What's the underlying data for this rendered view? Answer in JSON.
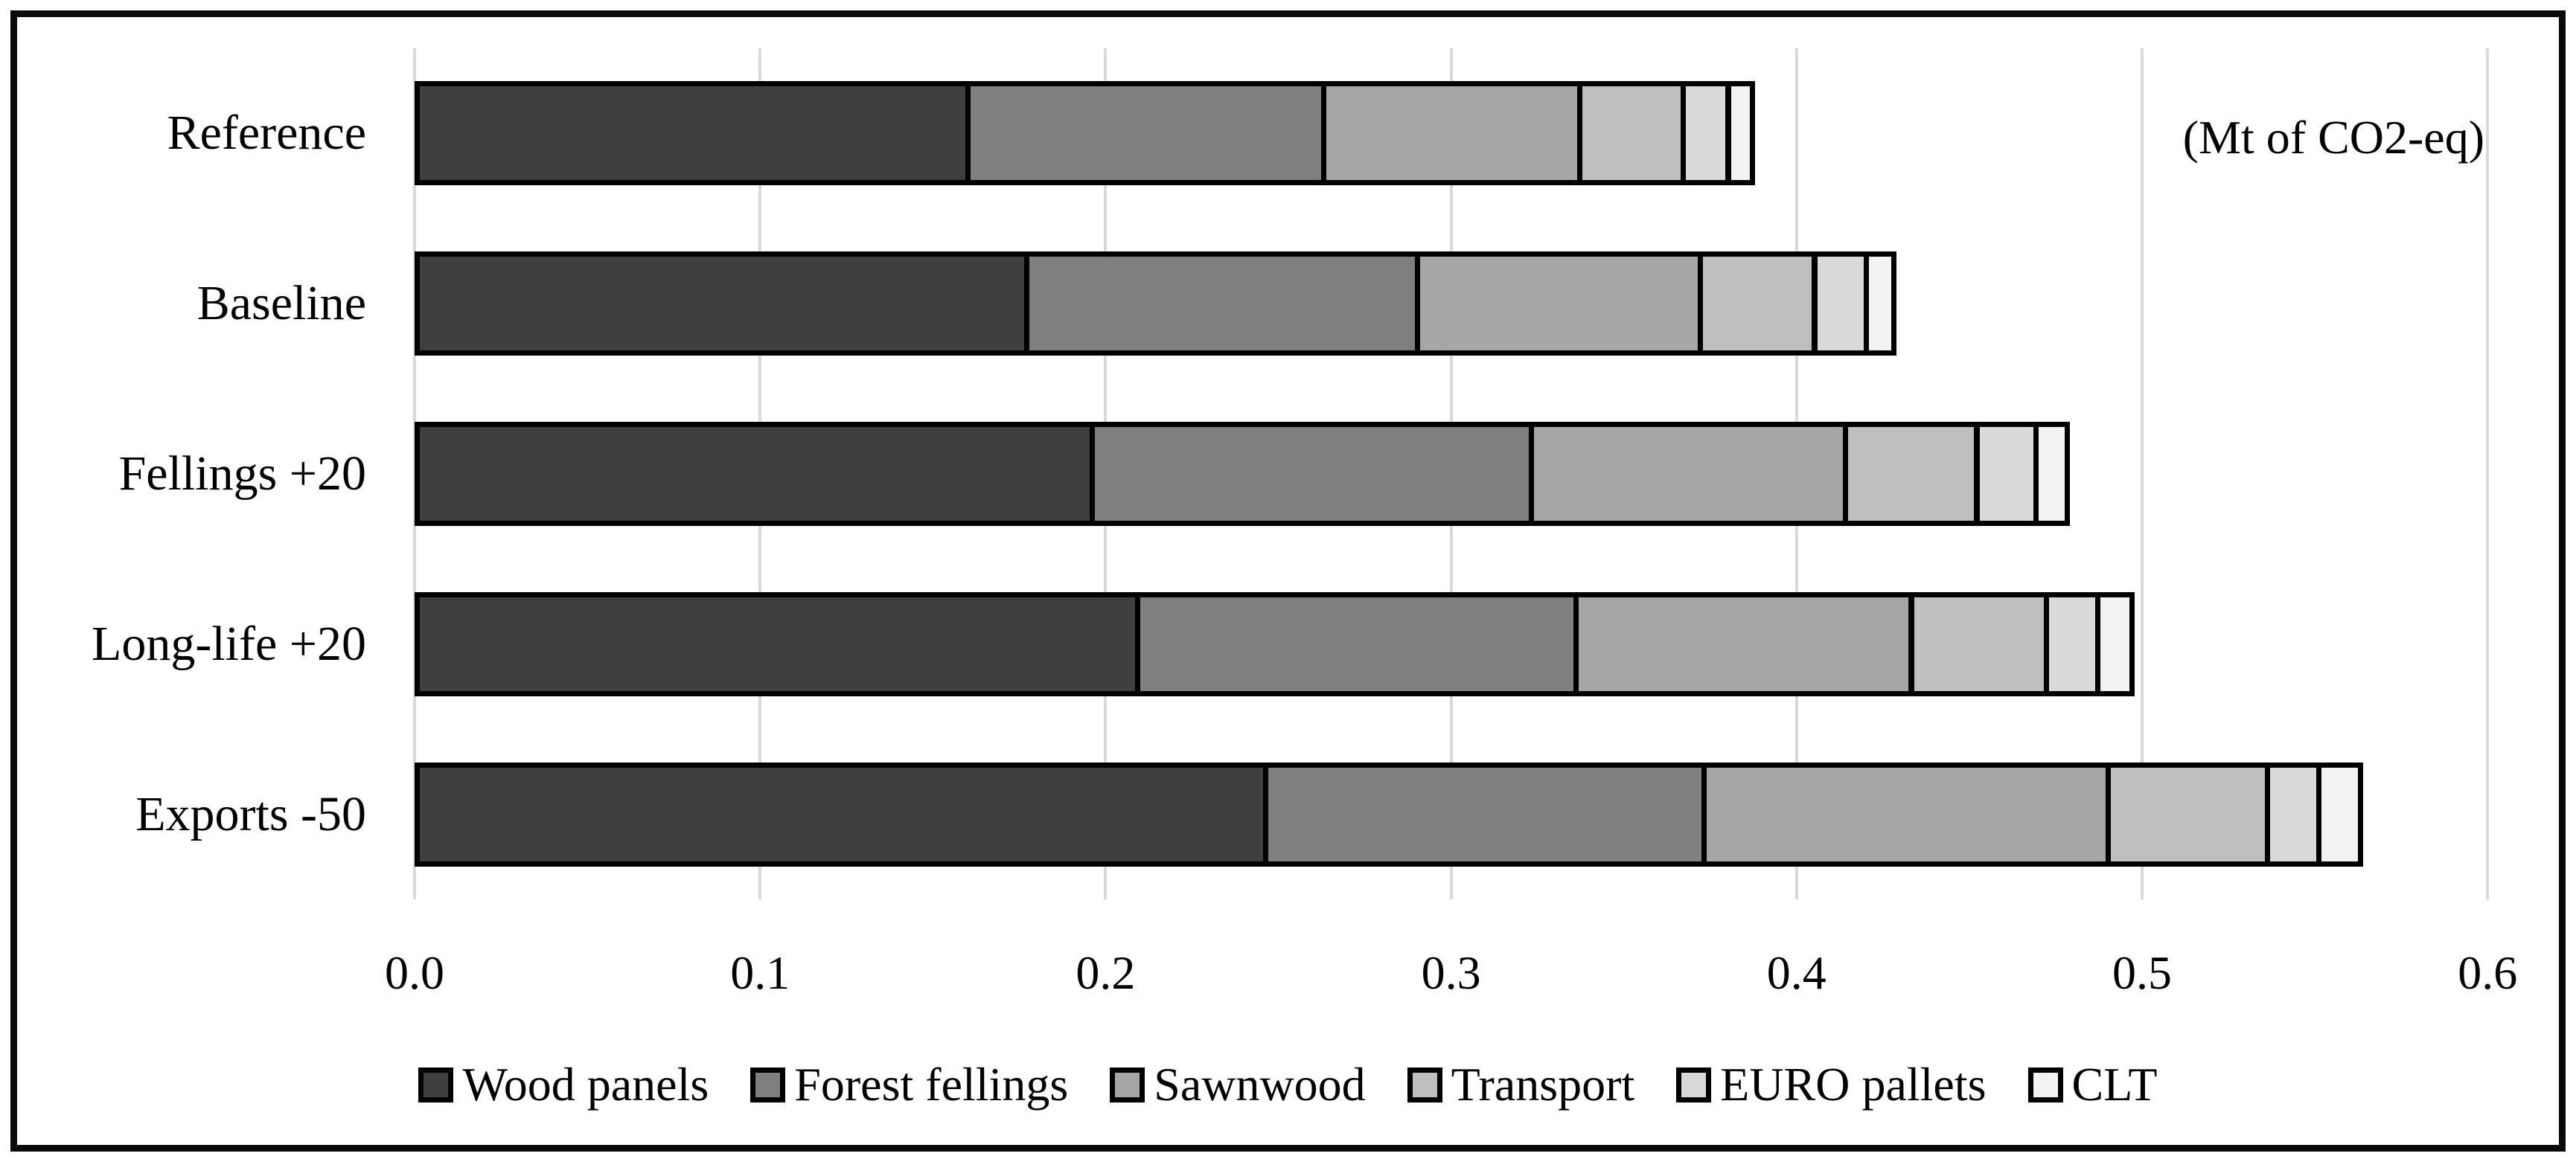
{
  "chart_data": {
    "type": "bar",
    "orientation": "horizontal-stacked",
    "title": "",
    "annotation": "(Mt of CO2-eq)",
    "categories": [
      "Reference",
      "Baseline",
      "Fellings +20",
      "Long-life +20",
      "Exports -50"
    ],
    "series": [
      {
        "name": "Wood panels",
        "color": "#3f3f3f",
        "values": [
          0.161,
          0.178,
          0.197,
          0.21,
          0.247
        ]
      },
      {
        "name": "Forest fellings",
        "color": "#7f7f7f",
        "values": [
          0.103,
          0.113,
          0.127,
          0.127,
          0.127
        ]
      },
      {
        "name": "Sawnwood",
        "color": "#a6a6a6",
        "values": [
          0.074,
          0.082,
          0.091,
          0.097,
          0.117
        ]
      },
      {
        "name": "Transport",
        "color": "#bfbfbf",
        "values": [
          0.03,
          0.033,
          0.038,
          0.039,
          0.046
        ]
      },
      {
        "name": "EURO pallets",
        "color": "#d9d9d9",
        "values": [
          0.013,
          0.015,
          0.017,
          0.015,
          0.015
        ]
      },
      {
        "name": "CLT",
        "color": "#f2f2f2",
        "values": [
          0.007,
          0.008,
          0.009,
          0.01,
          0.012
        ]
      }
    ],
    "bar_totals": [
      0.388,
      0.429,
      0.479,
      0.498,
      0.564
    ],
    "x_ticks": [
      "0.0",
      "0.1",
      "0.2",
      "0.3",
      "0.4",
      "0.5",
      "0.6"
    ],
    "xlim": [
      0.0,
      0.6
    ],
    "grid": true,
    "legend_position": "bottom"
  },
  "styles": {
    "segment_border_color": "#000000",
    "gridline_color": "#d9d9d9",
    "frame_color": "#0a0a0a",
    "text_color": "#000000",
    "background": "#ffffff"
  }
}
